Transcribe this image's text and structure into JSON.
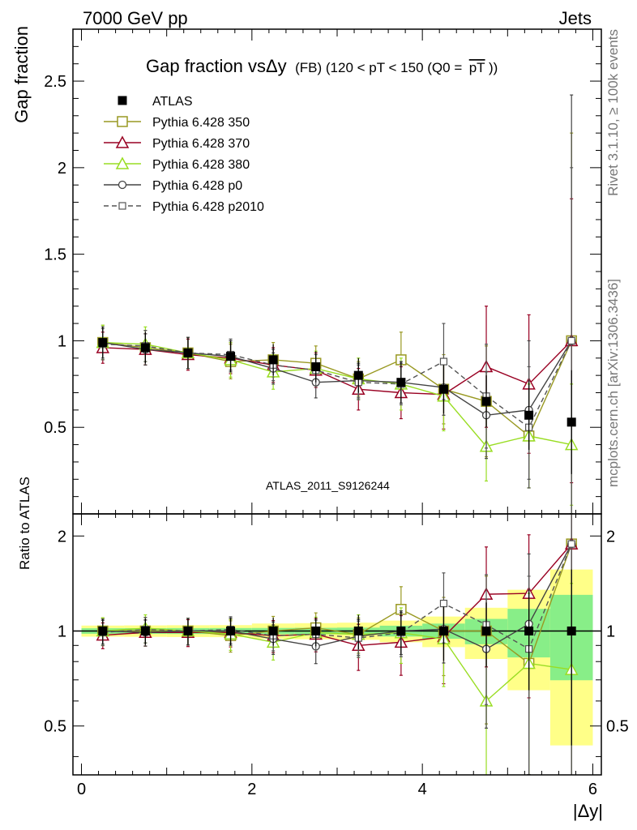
{
  "header": {
    "left": "7000 GeV pp",
    "right": "Jets"
  },
  "side_labels": {
    "rivet": "Rivet 3.1.10, ≥ 100k events",
    "mcplots": "mcplots.cern.ch [arXiv:1306.3436]"
  },
  "colors": {
    "atlas": "#000000",
    "p350": "#999922",
    "p370": "#990022",
    "p380": "#99dd22",
    "p0": "#444444",
    "p2010": "#555555",
    "band_outer": "#ffff88",
    "band_inner": "#88ee88"
  },
  "chart_data": {
    "type": "line",
    "title_main": "Gap fraction vsΔy",
    "title_sub": "(FB) (120 < pT < 150 (Q0 =",
    "title_overline": "pT",
    "title_end": "))",
    "watermark": "ATLAS_2011_S9126244",
    "xlabel": "|Δy|",
    "ylabel_top": "Gap fraction",
    "ylabel_bottom": "Ratio to ATLAS",
    "xlim": [
      -0.1,
      6.1
    ],
    "ylim_top": [
      0,
      2.8
    ],
    "ylim_bottom": [
      0.35,
      2.35
    ],
    "ratio_log_scale": true,
    "x_ticks": [
      "0",
      "2",
      "4",
      "6"
    ],
    "y_ticks_top": [
      "0.5",
      "1",
      "1.5",
      "2",
      "2.5"
    ],
    "y_ticks_bottom": [
      "0.5",
      "1",
      "2"
    ],
    "x": [
      0.25,
      0.75,
      1.25,
      1.75,
      2.25,
      2.75,
      3.25,
      3.75,
      4.25,
      4.75,
      5.25,
      5.75
    ],
    "atlas": {
      "name": "ATLAS",
      "values": [
        0.99,
        0.96,
        0.93,
        0.91,
        0.89,
        0.85,
        0.8,
        0.76,
        0.72,
        0.65,
        0.57,
        0.53
      ],
      "errors": [
        0.09,
        0.09,
        0.09,
        0.09,
        0.09,
        0.09,
        0.1,
        0.12,
        0.14,
        0.15,
        0.2,
        0.3
      ]
    },
    "band_outer": [
      0.04,
      0.04,
      0.04,
      0.04,
      0.05,
      0.05,
      0.05,
      0.06,
      0.08,
      0.12,
      0.2,
      0.3
    ],
    "band_inner": [
      0.02,
      0.02,
      0.02,
      0.02,
      0.02,
      0.02,
      0.02,
      0.03,
      0.04,
      0.06,
      0.1,
      0.16
    ],
    "series": [
      {
        "name": "Pythia 6.428 350",
        "key": "p350",
        "marker": "square",
        "dash": false,
        "values": [
          0.99,
          0.96,
          0.93,
          0.88,
          0.89,
          0.87,
          0.78,
          0.89,
          0.72,
          0.65,
          0.45,
          1.0
        ],
        "errors": [
          0.1,
          0.1,
          0.09,
          0.1,
          0.1,
          0.1,
          0.1,
          0.16,
          0.2,
          0.32,
          0.3,
          1.2
        ]
      },
      {
        "name": "Pythia 6.428 370",
        "key": "p370",
        "marker": "triangle",
        "dash": false,
        "values": [
          0.96,
          0.95,
          0.92,
          0.9,
          0.86,
          0.83,
          0.72,
          0.7,
          0.69,
          0.85,
          0.75,
          1.0
        ],
        "errors": [
          0.09,
          0.09,
          0.09,
          0.09,
          0.1,
          0.1,
          0.12,
          0.15,
          0.2,
          0.35,
          0.4,
          0.82
        ]
      },
      {
        "name": "Pythia 6.428 380",
        "key": "p380",
        "marker": "triangle",
        "dash": false,
        "values": [
          0.99,
          0.98,
          0.93,
          0.89,
          0.82,
          0.84,
          0.78,
          0.75,
          0.68,
          0.39,
          0.45,
          0.4
        ],
        "errors": [
          0.1,
          0.1,
          0.09,
          0.1,
          0.1,
          0.1,
          0.12,
          0.15,
          0.2,
          0.2,
          0.3,
          0.35
        ]
      },
      {
        "name": "Pythia 6.428 p0",
        "key": "p0",
        "marker": "circle",
        "dash": false,
        "values": [
          0.99,
          0.95,
          0.93,
          0.91,
          0.84,
          0.76,
          0.77,
          0.76,
          0.73,
          0.57,
          0.6,
          1.0
        ],
        "errors": [
          0.09,
          0.09,
          0.09,
          0.09,
          0.09,
          0.09,
          0.1,
          0.12,
          0.16,
          0.25,
          0.4,
          1.42
        ]
      },
      {
        "name": "Pythia 6.428 p2010",
        "key": "p2010",
        "marker": "square-small",
        "dash": true,
        "values": [
          0.98,
          0.97,
          0.93,
          0.92,
          0.86,
          0.83,
          0.76,
          0.75,
          0.88,
          0.68,
          0.5,
          1.0
        ],
        "errors": [
          0.09,
          0.09,
          0.09,
          0.09,
          0.09,
          0.09,
          0.1,
          0.12,
          0.22,
          0.3,
          0.35,
          1.0
        ]
      }
    ]
  }
}
